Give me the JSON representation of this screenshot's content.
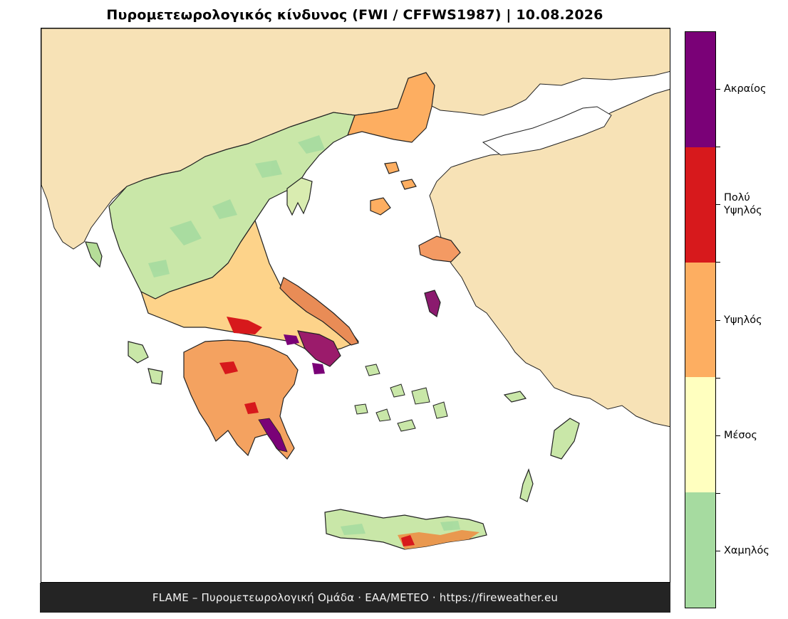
{
  "title": "Πυρομετεωρολογικός κίνδυνος (FWI / CFFWS1987)  |  10.08.2026",
  "footer": "FLAME – Πυρομετεωρολογική Ομάδα · ΕΑΑ/METEO · https://fireweather.eu",
  "colors": {
    "land_background": "#f7e2b6",
    "sea": "#ffffff",
    "border": "#222222",
    "footer_bg": "#242424"
  },
  "legend": {
    "title": "",
    "classes": [
      {
        "label": "Ακραίος",
        "color": "#7a0177"
      },
      {
        "label": "Πολύ\nΥψηλός",
        "color": "#d7191c"
      },
      {
        "label": "Υψηλός",
        "color": "#fdae61"
      },
      {
        "label": "Μέσος",
        "color": "#ffffbf"
      },
      {
        "label": "Χαμηλός",
        "color": "#a6dba0"
      }
    ]
  }
}
